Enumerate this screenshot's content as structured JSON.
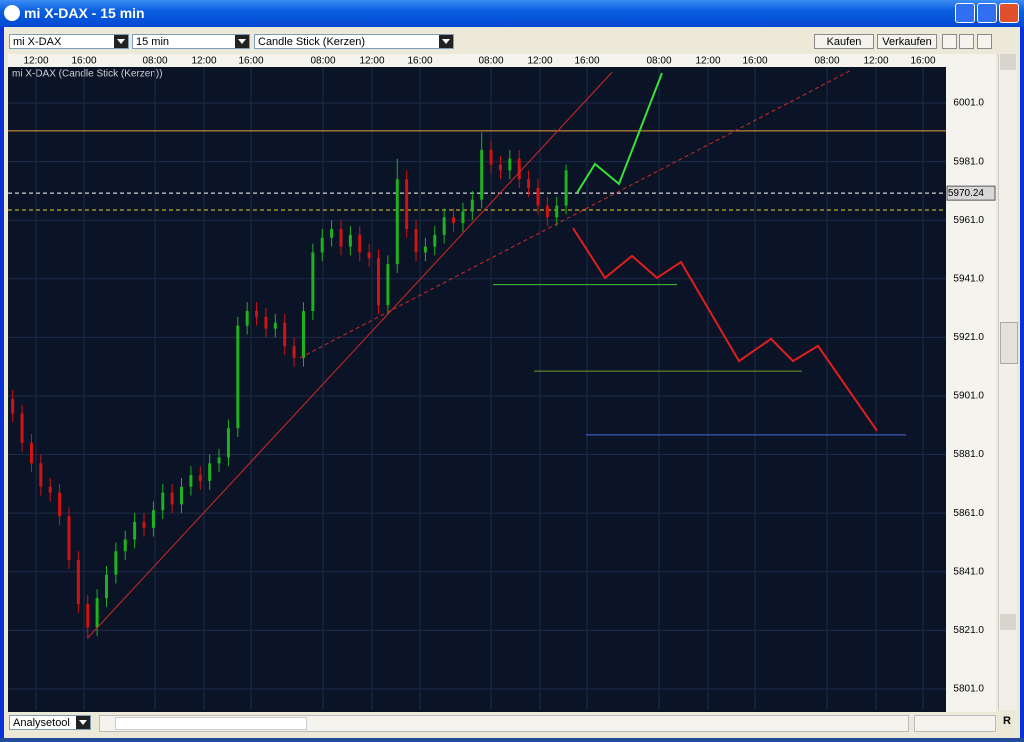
{
  "window": {
    "title": "mi X-DAX - 15 min"
  },
  "toolbar": {
    "instrument": "mi X-DAX",
    "interval": "15 min",
    "chart_style": "Candle Stick (Kerzen)",
    "buy": "Kaufen",
    "sell": "Verkaufen"
  },
  "chart_data": {
    "type": "candlestick",
    "title": "mi X-DAX (Candle Stick (Kerzen))",
    "time_labels": [
      "12:00",
      "16:00",
      "08:00",
      "12:00",
      "16:00",
      "08:00",
      "12:00",
      "16:00",
      "08:00",
      "12:00",
      "16:00",
      "08:00",
      "12:00",
      "16:00",
      "08:00",
      "12:00",
      "16:00"
    ],
    "open": [
      5900,
      5895,
      5885,
      5878,
      5870,
      5868,
      5860,
      5845,
      5830,
      5822,
      5832,
      5840,
      5848,
      5852,
      5858,
      5856,
      5862,
      5868,
      5864,
      5870,
      5874,
      5872,
      5878,
      5880,
      5890,
      5925,
      5930,
      5928,
      5924,
      5926,
      5918,
      5914,
      5930,
      5950,
      5955,
      5958,
      5952,
      5956,
      5950,
      5948,
      5932,
      5946,
      5975,
      5958,
      5950,
      5952,
      5956,
      5962,
      5960,
      5964,
      5968,
      5985,
      5980,
      5978,
      5982,
      5975,
      5972,
      5966,
      5962,
      5966
    ],
    "high": [
      5903,
      5898,
      5888,
      5881,
      5873,
      5871,
      5863,
      5848,
      5833,
      5835,
      5843,
      5851,
      5855,
      5861,
      5861,
      5865,
      5871,
      5871,
      5873,
      5877,
      5877,
      5881,
      5883,
      5893,
      5928,
      5933,
      5933,
      5931,
      5929,
      5929,
      5921,
      5933,
      5953,
      5958,
      5961,
      5961,
      5959,
      5959,
      5953,
      5951,
      5949,
      5982,
      5978,
      5961,
      5955,
      5959,
      5965,
      5965,
      5967,
      5971,
      5991,
      5988,
      5983,
      5985,
      5985,
      5978,
      5975,
      5969,
      5969,
      5980
    ],
    "low": [
      5892,
      5882,
      5875,
      5867,
      5865,
      5857,
      5842,
      5827,
      5818,
      5819,
      5829,
      5837,
      5845,
      5849,
      5853,
      5853,
      5859,
      5861,
      5861,
      5867,
      5869,
      5869,
      5875,
      5877,
      5887,
      5922,
      5925,
      5921,
      5921,
      5915,
      5911,
      5911,
      5927,
      5947,
      5952,
      5949,
      5949,
      5947,
      5945,
      5929,
      5929,
      5943,
      5955,
      5947,
      5947,
      5949,
      5953,
      5957,
      5957,
      5961,
      5965,
      5977,
      5975,
      5975,
      5972,
      5969,
      5963,
      5959,
      5959,
      5963
    ],
    "close": [
      5895,
      5885,
      5878,
      5870,
      5868,
      5860,
      5845,
      5830,
      5822,
      5832,
      5840,
      5848,
      5852,
      5858,
      5856,
      5862,
      5868,
      5864,
      5870,
      5874,
      5872,
      5878,
      5880,
      5890,
      5925,
      5930,
      5928,
      5924,
      5926,
      5918,
      5914,
      5930,
      5950,
      5955,
      5958,
      5952,
      5956,
      5950,
      5948,
      5932,
      5946,
      5975,
      5958,
      5950,
      5952,
      5956,
      5962,
      5960,
      5964,
      5968,
      5985,
      5980,
      5978,
      5982,
      5975,
      5972,
      5966,
      5962,
      5966,
      5978
    ],
    "up_color": "#1fb21f",
    "down_color": "#d01414",
    "ylim": [
      5793.8,
      6013.3
    ],
    "yticks": [
      {
        "value": 6001,
        "label": "6001.0"
      },
      {
        "value": 5981,
        "label": "5981.0"
      },
      {
        "value": 5961,
        "label": "5961.0"
      },
      {
        "value": 5941,
        "label": "5941.0"
      },
      {
        "value": 5921,
        "label": "5921.0"
      },
      {
        "value": 5901,
        "label": "5901.0"
      },
      {
        "value": 5881,
        "label": "5881.0"
      },
      {
        "value": 5861,
        "label": "5861.0"
      },
      {
        "value": 5841,
        "label": "5841.0"
      },
      {
        "value": 5821,
        "label": "5821.0"
      },
      {
        "value": 5801,
        "label": "5801.0"
      }
    ],
    "grid": true,
    "last_price": 5970.24,
    "drawings": {
      "resistance": 5991.5,
      "support_dashed": 5964.5,
      "target_1": 5939,
      "target_2": 5909.5,
      "target_3": 5887.7,
      "trendline": [
        5818.5,
        6011.5
      ],
      "trendline_dashed": [
        5914,
        6012
      ],
      "bull_path": [
        5970.3,
        5980.2,
        5973.4,
        6011.2
      ],
      "bear_path": [
        5958.3,
        5941.3,
        5948.8,
        5941.3,
        5946.7,
        5912.9,
        5920.5,
        5912.9,
        5918.1,
        5889.1
      ]
    }
  },
  "bottom_bar": {
    "tool": "Analysetool",
    "reset": "R"
  }
}
